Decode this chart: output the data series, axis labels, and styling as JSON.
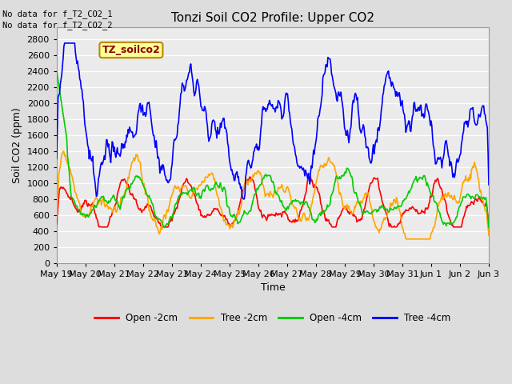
{
  "title": "Tonzi Soil CO2 Profile: Upper CO2",
  "ylabel": "Soil CO2 (ppm)",
  "xlabel": "Time",
  "no_data_text_1": "No data for f_T2_CO2_1",
  "no_data_text_2": "No data for f_T2_CO2_2",
  "label_box_text": "TZ_soilco2",
  "label_box_color": "#FFFF99",
  "label_box_edge": "#BB8800",
  "ylim": [
    0,
    2950
  ],
  "yticks": [
    0,
    200,
    400,
    600,
    800,
    1000,
    1200,
    1400,
    1600,
    1800,
    2000,
    2200,
    2400,
    2600,
    2800
  ],
  "xtick_labels": [
    "May 19",
    "May 20",
    "May 21",
    "May 22",
    "May 23",
    "May 24",
    "May 25",
    "May 26",
    "May 27",
    "May 28",
    "May 29",
    "May 30",
    "May 31",
    "Jun 1",
    "Jun 2",
    "Jun 3"
  ],
  "color_open_2cm": "#FF0000",
  "color_tree_2cm": "#FFA500",
  "color_open_4cm": "#00CC00",
  "color_tree_4cm": "#0000FF",
  "legend_labels": [
    "Open -2cm",
    "Tree -2cm",
    "Open -4cm",
    "Tree -4cm"
  ],
  "fig_bg": "#DDDDDD",
  "plot_bg": "#EBEBEB",
  "grid_color": "#FFFFFF",
  "n_points": 600,
  "title_fontsize": 11,
  "axis_fontsize": 9,
  "tick_fontsize": 8
}
